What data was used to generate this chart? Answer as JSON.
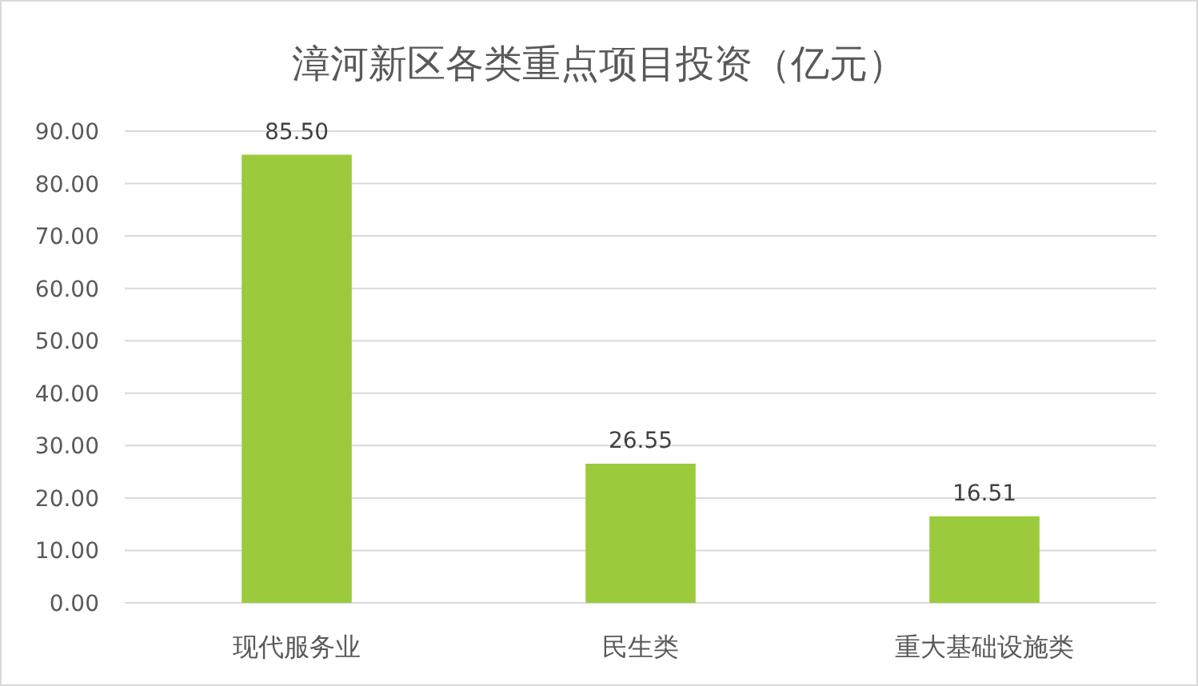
{
  "chart_data": {
    "type": "bar",
    "title": "漳河新区各类重点项目投资（亿元）",
    "categories": [
      "现代服务业",
      "民生类",
      "重大基础设施类"
    ],
    "values": [
      85.5,
      26.55,
      16.51
    ],
    "value_labels": [
      "85.50",
      "26.55",
      "16.51"
    ],
    "color": "#9bca3c",
    "ylim": [
      0,
      90
    ],
    "yticks": [
      {
        "value": 0,
        "label": "0.00"
      },
      {
        "value": 10,
        "label": "10.00"
      },
      {
        "value": 20,
        "label": "20.00"
      },
      {
        "value": 30,
        "label": "30.00"
      },
      {
        "value": 40,
        "label": "40.00"
      },
      {
        "value": 50,
        "label": "50.00"
      },
      {
        "value": 60,
        "label": "60.00"
      },
      {
        "value": 70,
        "label": "70.00"
      },
      {
        "value": 80,
        "label": "80.00"
      },
      {
        "value": 90,
        "label": "90.00"
      }
    ],
    "grid": "y"
  }
}
